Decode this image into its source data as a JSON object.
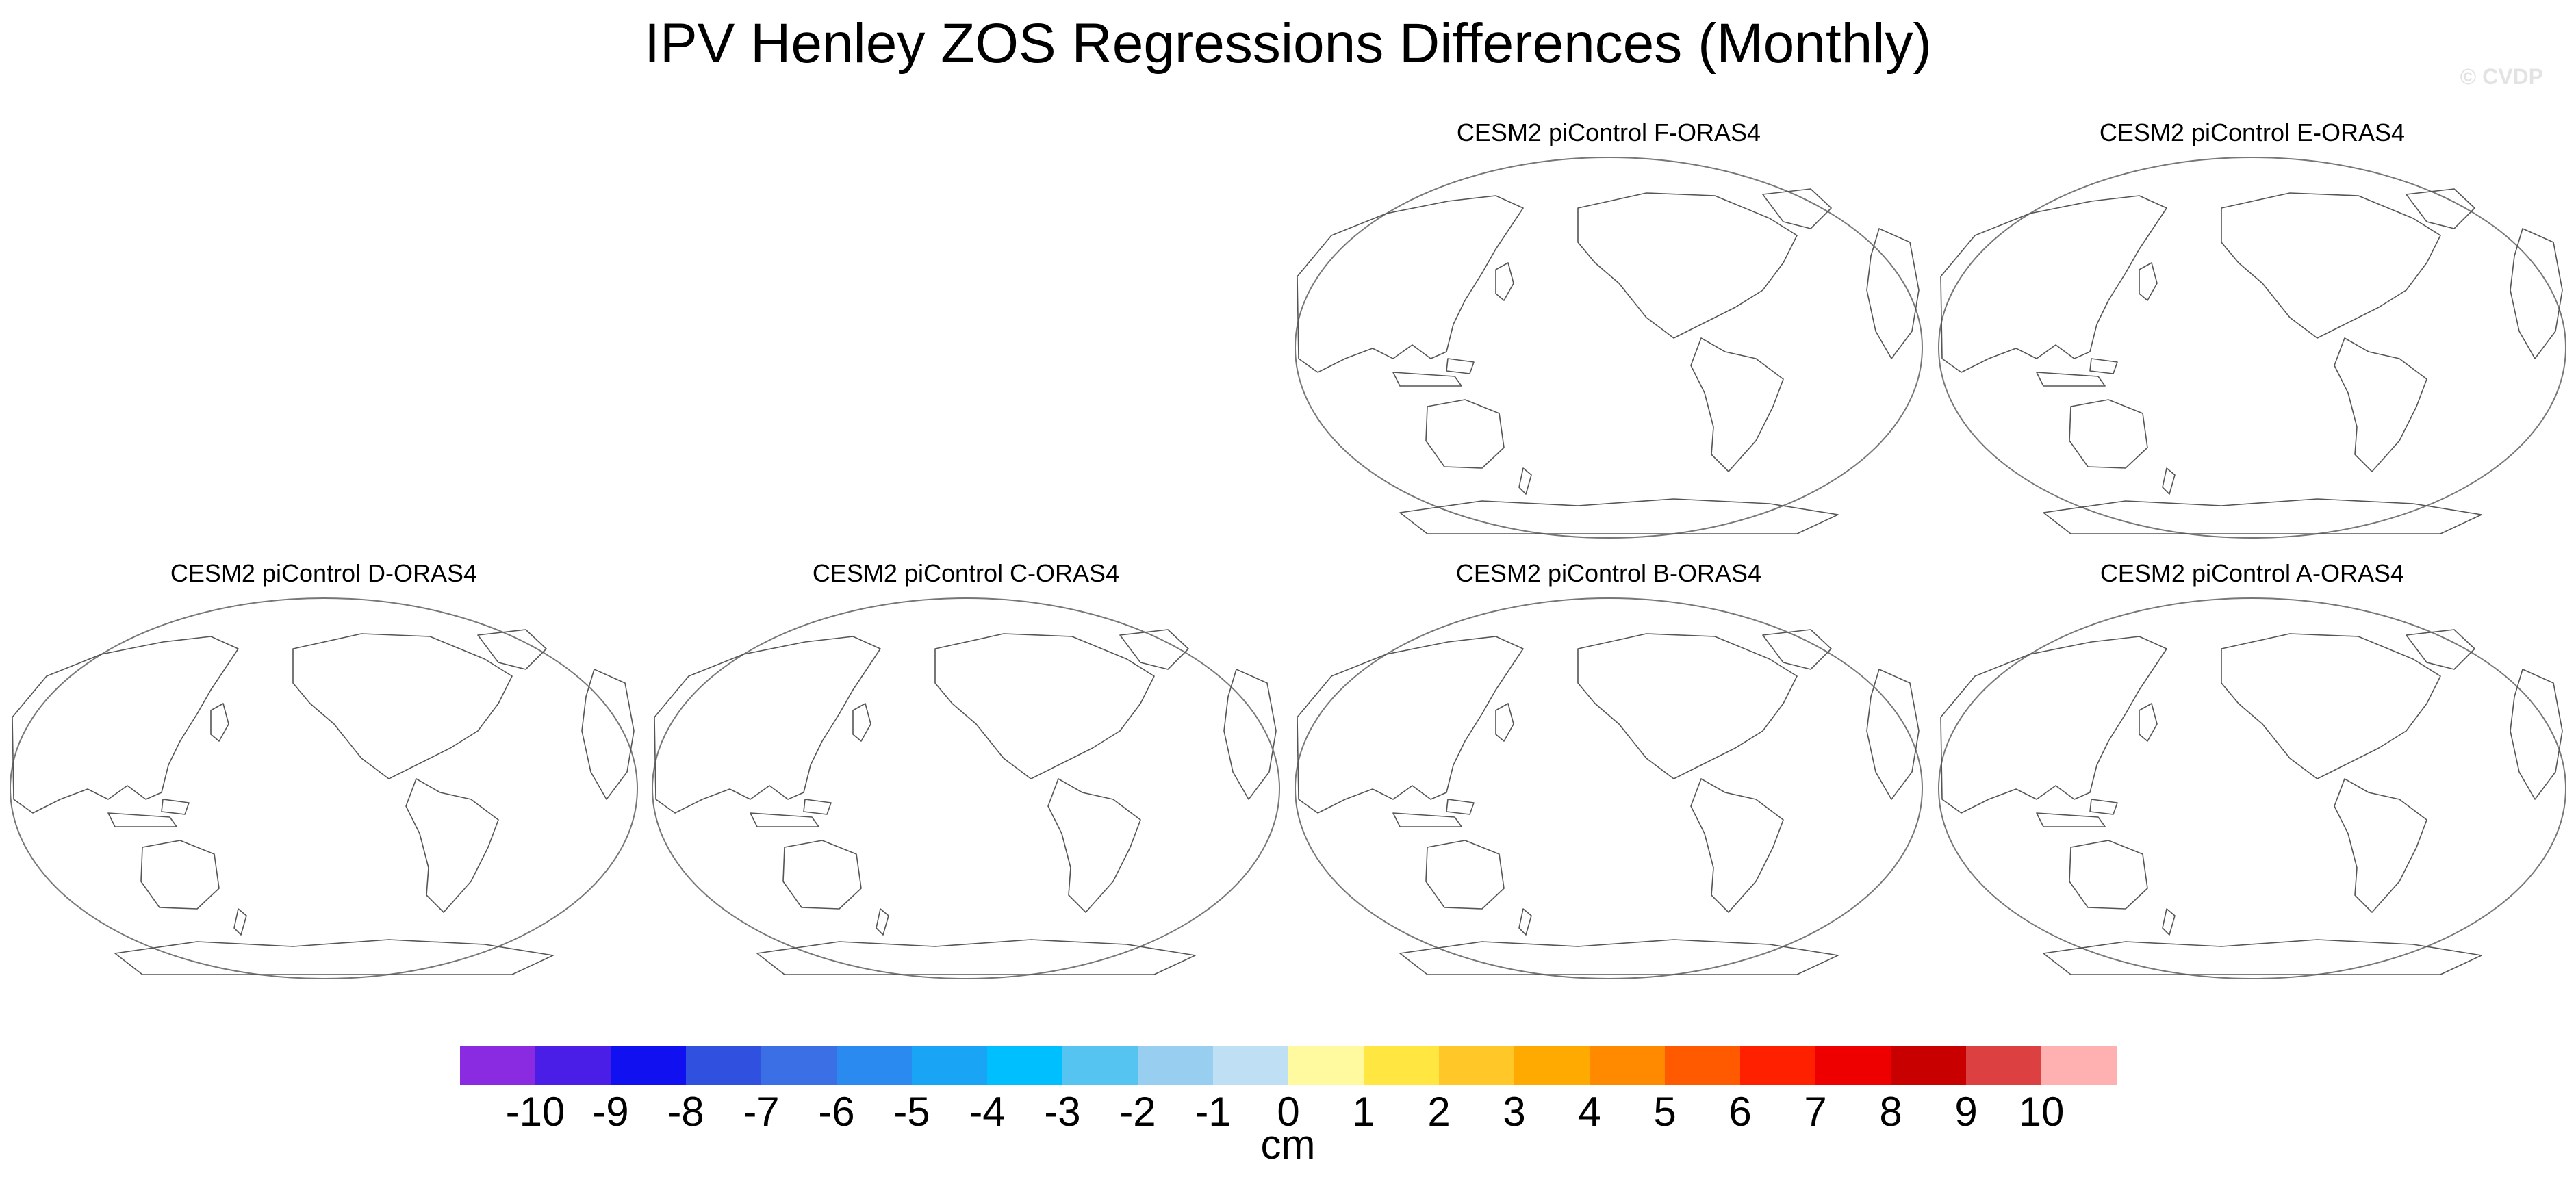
{
  "title": "IPV Henley ZOS Regressions Differences (Monthly)",
  "watermark": "© CVDP",
  "panels": {
    "f": "CESM2 piControl F-ORAS4",
    "e": "CESM2 piControl E-ORAS4",
    "d": "CESM2 piControl D-ORAS4",
    "c": "CESM2 piControl C-ORAS4",
    "b": "CESM2 piControl B-ORAS4",
    "a": "CESM2 piControl A-ORAS4"
  },
  "colorbar": {
    "units": "cm",
    "tick_labels": [
      "-10",
      "-9",
      "-8",
      "-7",
      "-6",
      "-5",
      "-4",
      "-3",
      "-2",
      "-1",
      "0",
      "1",
      "2",
      "3",
      "4",
      "5",
      "6",
      "7",
      "8",
      "9",
      "10"
    ],
    "colors": [
      "#8a2be2",
      "#4b1ee8",
      "#1010f0",
      "#3050e0",
      "#3a6fe6",
      "#2a8af0",
      "#19a4f5",
      "#00bfff",
      "#55c4f0",
      "#98cff0",
      "#bfe0f4",
      "#fff9a0",
      "#ffe640",
      "#ffc828",
      "#ffaa00",
      "#ff8a00",
      "#ff5a00",
      "#ff2000",
      "#ee0000",
      "#c80000",
      "#dc4040",
      "#ffb0b0"
    ]
  }
}
